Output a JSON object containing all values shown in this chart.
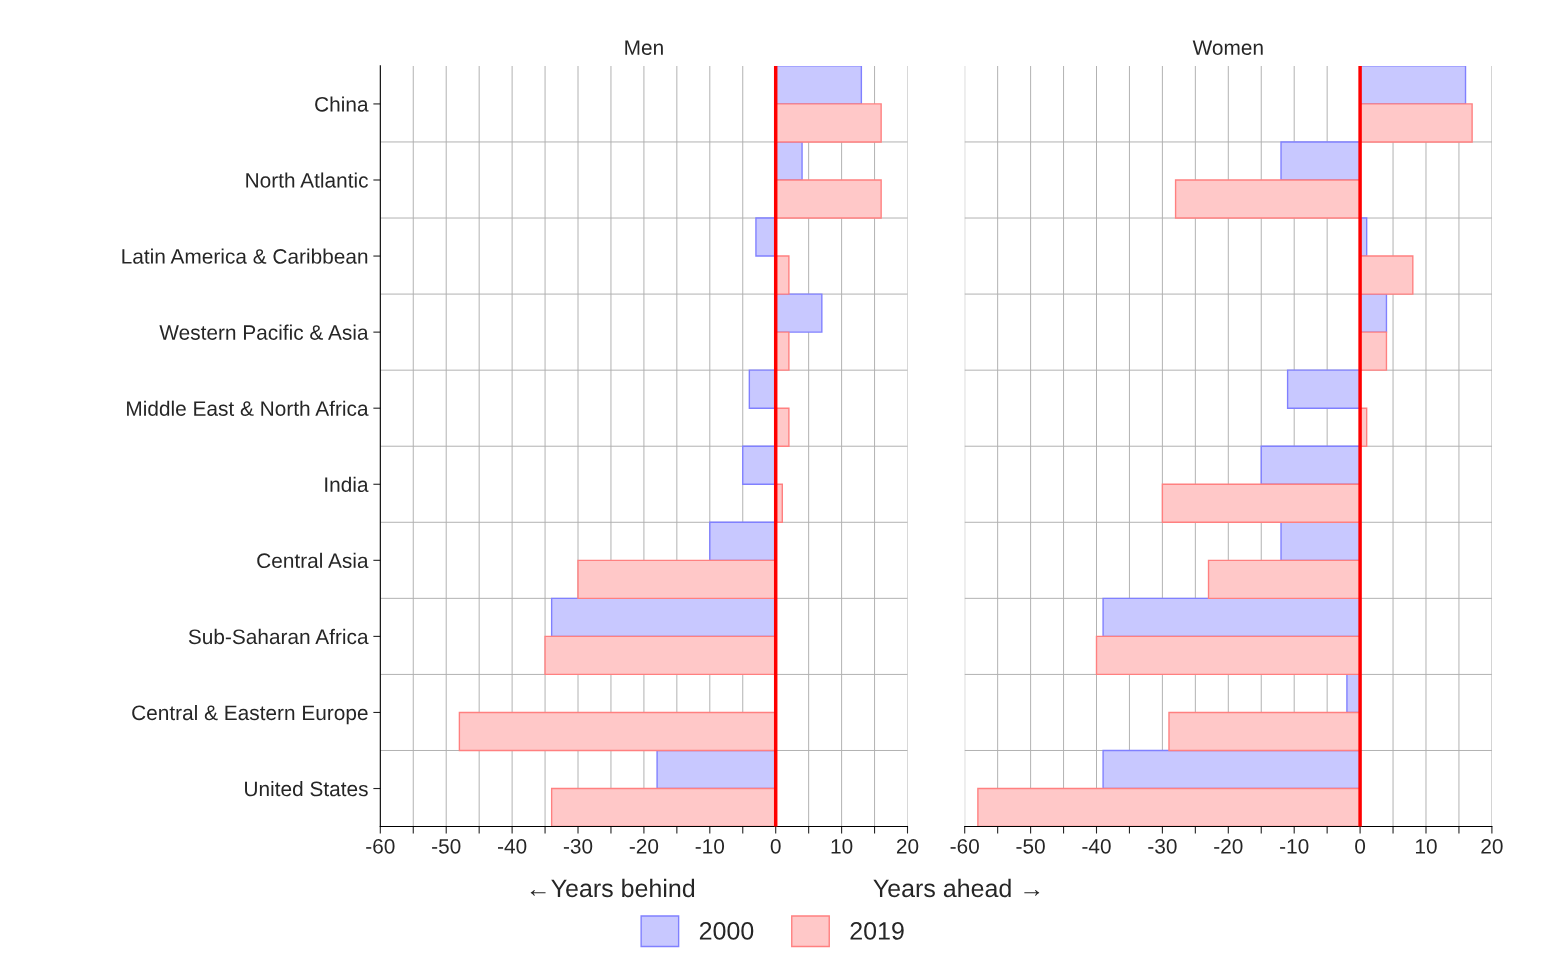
{
  "chart_data": [
    {
      "type": "bar",
      "orientation": "horizontal",
      "title": "Men",
      "categories": [
        "China",
        "North Atlantic",
        "Latin America & Caribbean",
        "Western Pacific & Asia",
        "Middle East & North Africa",
        "India",
        "Central Asia",
        "Sub-Saharan Africa",
        "Central & Eastern Europe",
        "United States"
      ],
      "series": [
        {
          "name": "2000",
          "color": "#c8c8ff",
          "values": [
            13,
            4,
            -3,
            7,
            -4,
            -5,
            -10,
            -34,
            null,
            -18
          ]
        },
        {
          "name": "2019",
          "color": "#ffc8c8",
          "values": [
            16,
            16,
            2,
            2,
            2,
            1,
            -30,
            -35,
            -48,
            -34
          ]
        }
      ],
      "xlim": [
        -60,
        20
      ],
      "xticks": [
        -60,
        {
          "value": -55,
          "label": null
        },
        -50,
        {
          "value": -45,
          "label": null
        },
        -40,
        {
          "value": -35,
          "label": null
        },
        -30,
        {
          "value": -25,
          "label": null
        },
        -20,
        {
          "value": -15,
          "label": null
        },
        -10,
        {
          "value": -5,
          "label": null
        },
        0,
        {
          "value": 5,
          "label": null
        },
        10,
        {
          "value": 15,
          "label": null
        },
        20
      ],
      "grid": true,
      "legend": "bottom",
      "ref_lines": [
        {
          "axis": "x",
          "value": 0,
          "color": "#ff0000"
        }
      ],
      "annotations": [
        "←Years behind"
      ]
    },
    {
      "type": "bar",
      "orientation": "horizontal",
      "title": "Women",
      "categories": [
        null,
        null,
        null,
        null,
        null,
        null,
        null,
        null,
        null,
        null
      ],
      "series": [
        {
          "name": "2000",
          "color": "#c8c8ff",
          "values": [
            16,
            -12,
            1,
            4,
            -11,
            -15,
            -12,
            -39,
            -2,
            -39
          ]
        },
        {
          "name": "2019",
          "color": "#ffc8c8",
          "values": [
            17,
            -28,
            8,
            4,
            1,
            -30,
            -23,
            -40,
            -29,
            -58
          ]
        }
      ],
      "xlim": [
        -60,
        20
      ],
      "xticks": [
        -60,
        {
          "value": -55,
          "label": null
        },
        -50,
        {
          "value": -45,
          "label": null
        },
        -40,
        {
          "value": -35,
          "label": null
        },
        -30,
        {
          "value": -25,
          "label": null
        },
        -20,
        {
          "value": -15,
          "label": null
        },
        -10,
        {
          "value": -5,
          "label": null
        },
        0,
        {
          "value": 5,
          "label": null
        },
        10,
        {
          "value": 15,
          "label": null
        },
        20
      ],
      "grid": true,
      "tick_labels": "x",
      "ref_lines": [
        {
          "axis": "x",
          "value": 0,
          "color": "#ff0000"
        }
      ],
      "annotations": [
        "Years ahead →"
      ]
    }
  ]
}
